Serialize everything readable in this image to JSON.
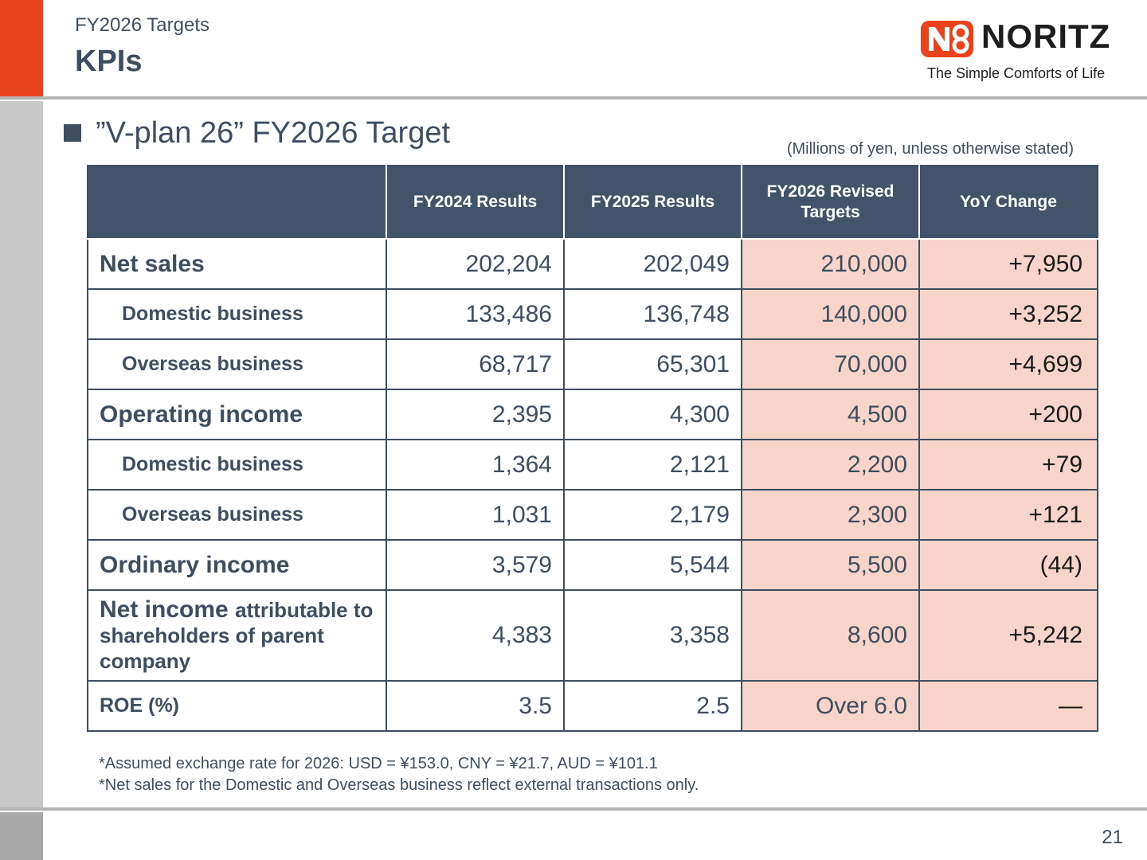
{
  "header": {
    "subtitle": "FY2026 Targets",
    "title": "KPIs"
  },
  "logo": {
    "wordmark": "NORITZ",
    "tagline": "The Simple Comforts of Life",
    "mark_color": "#e8431c"
  },
  "section": {
    "heading": "”V-plan 26” FY2026 Target",
    "units_note": "(Millions of yen, unless otherwise stated)"
  },
  "table": {
    "columns": [
      "",
      "FY2024 Results",
      "FY2025 Results",
      "FY2026 Revised Targets",
      "YoY Change"
    ],
    "rows": [
      {
        "label": "Net sales",
        "fy2024": "202,204",
        "fy2025": "202,049",
        "fy2026": "210,000",
        "yoy": "+7,950"
      },
      {
        "label": "Domestic business",
        "fy2024": "133,486",
        "fy2025": "136,748",
        "fy2026": "140,000",
        "yoy": "+3,252"
      },
      {
        "label": "Overseas business",
        "fy2024": "68,717",
        "fy2025": "65,301",
        "fy2026": "70,000",
        "yoy": "+4,699"
      },
      {
        "label": "Operating income",
        "fy2024": "2,395",
        "fy2025": "4,300",
        "fy2026": "4,500",
        "yoy": "+200"
      },
      {
        "label": "Domestic business",
        "fy2024": "1,364",
        "fy2025": "2,121",
        "fy2026": "2,200",
        "yoy": "+79"
      },
      {
        "label": "Overseas business",
        "fy2024": "1,031",
        "fy2025": "2,179",
        "fy2026": "2,300",
        "yoy": "+121"
      },
      {
        "label": "Ordinary income",
        "fy2024": "3,579",
        "fy2025": "5,544",
        "fy2026": "5,500",
        "yoy": "(44)"
      },
      {
        "label_main": "Net income",
        "label_rest": "attributable to shareholders of parent company",
        "fy2024": "4,383",
        "fy2025": "3,358",
        "fy2026": "8,600",
        "yoy": "+5,242"
      },
      {
        "label": "ROE (%)",
        "fy2024": "3.5",
        "fy2025": "2.5",
        "fy2026": "Over 6.0",
        "yoy": "—"
      }
    ],
    "colors": {
      "header_bg": "#43536a",
      "target_bg": "#f8d4ca",
      "text": "#3e4e60"
    }
  },
  "notes": [
    "*Assumed exchange rate for 2026: USD = ¥153.0, CNY = ¥21.7, AUD = ¥101.1",
    "*Net sales for the Domestic and Overseas business reflect external transactions only."
  ],
  "page_number": "21"
}
